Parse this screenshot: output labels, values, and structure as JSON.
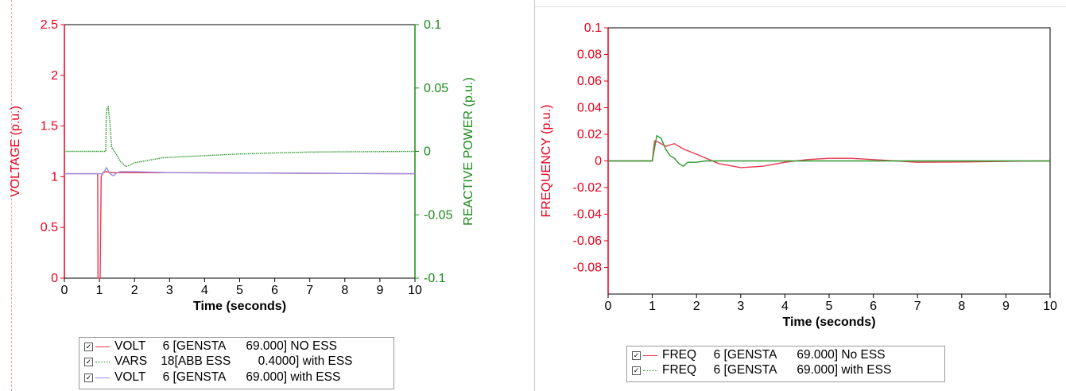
{
  "chart_data": [
    {
      "type": "line",
      "xlabel": "Time (seconds)",
      "ylabel": "VOLTAGE (p.u.)",
      "y2label": "REACTIVE POWER (p.u.)",
      "xlim": [
        0,
        10
      ],
      "ylim": [
        0,
        2.5
      ],
      "y2lim": [
        -0.1,
        0.1
      ],
      "xticks": [
        "0",
        "1",
        "2",
        "3",
        "4",
        "5",
        "6",
        "7",
        "8",
        "9",
        "10"
      ],
      "yticks": [
        "0",
        "0.5",
        "1",
        "1.5",
        "2",
        "2.5"
      ],
      "y2ticks": [
        "-0.1",
        "-0.05",
        "0",
        "0.05",
        "0.1"
      ],
      "colors": {
        "axis_left": "#e8001c",
        "axis_right": "#1a8a1a"
      },
      "series": [
        {
          "label": "VOLT     6 [GENSTA      69.000] NO ESS",
          "color": "#e8384f",
          "style": "solid",
          "axis": "left",
          "x": [
            0,
            0.9,
            0.95,
            0.96,
            1.0,
            1.02,
            1.05,
            1.1,
            1.2,
            1.3,
            1.5,
            2.0,
            3.0,
            10
          ],
          "y": [
            1.03,
            1.03,
            1.03,
            0.0,
            0.0,
            0.0,
            1.0,
            1.04,
            1.05,
            1.04,
            1.04,
            1.04,
            1.04,
            1.03
          ]
        },
        {
          "label": "VARS    18[ABB ESS        0.4000] with ESS",
          "color": "#2e9a2e",
          "style": "dotted",
          "axis": "right",
          "x": [
            0,
            1.18,
            1.2,
            1.25,
            1.3,
            1.35,
            1.4,
            1.5,
            1.6,
            1.75,
            1.85,
            2.0,
            2.4,
            2.8,
            3.5,
            5,
            7,
            10
          ],
          "y": [
            0.0,
            0.0,
            0.033,
            0.035,
            0.022,
            0.003,
            0.001,
            -0.003,
            -0.008,
            -0.012,
            -0.011,
            -0.009,
            -0.007,
            -0.005,
            -0.004,
            -0.002,
            -0.0005,
            0.0
          ]
        },
        {
          "label": "VOLT     6 [GENSTA      69.000] with ESS",
          "color": "#9b8fe0",
          "style": "solid",
          "axis": "left",
          "x": [
            0,
            1.0,
            1.1,
            1.2,
            1.3,
            1.4,
            1.5,
            1.6,
            2.0,
            3.0,
            10
          ],
          "y": [
            1.03,
            1.03,
            1.03,
            1.09,
            1.03,
            1.01,
            1.04,
            1.05,
            1.05,
            1.04,
            1.03
          ]
        }
      ]
    },
    {
      "type": "line",
      "xlabel": "Time (seconds)",
      "ylabel": "FREQUENCY (p.u.)",
      "xlim": [
        0,
        10
      ],
      "ylim": [
        -0.1,
        0.1
      ],
      "xticks": [
        "0",
        "1",
        "2",
        "3",
        "4",
        "5",
        "6",
        "7",
        "8",
        "9",
        "10"
      ],
      "yticks": [
        "0.1",
        "0.08",
        "0.06",
        "0.04",
        "0.02",
        "0",
        "-0.02",
        "-0.04",
        "-0.06",
        "-0.08"
      ],
      "colors": {
        "axis_left": "#e8001c"
      },
      "series": [
        {
          "label": "FREQ     6 [GENSTA      69.000] No ESS",
          "color": "#e8384f",
          "style": "solid",
          "axis": "left",
          "x": [
            0,
            1.0,
            1.05,
            1.15,
            1.3,
            1.5,
            1.7,
            2.0,
            2.5,
            3.0,
            3.5,
            4.0,
            4.5,
            5.0,
            5.5,
            6.0,
            6.5,
            7.0,
            8.0,
            9.0,
            10
          ],
          "y": [
            0,
            0,
            0.015,
            0.014,
            0.011,
            0.013,
            0.009,
            0.005,
            -0.002,
            -0.005,
            -0.004,
            -0.001,
            0.001,
            0.002,
            0.002,
            0.001,
            0,
            -0.001,
            -0.0008,
            -0.0003,
            0
          ]
        },
        {
          "label": "FREQ     6 [GENSTA      69.000] with ESS",
          "color": "#2e9a2e",
          "style": "solid",
          "axis": "left",
          "x": [
            0,
            1.0,
            1.1,
            1.2,
            1.3,
            1.4,
            1.5,
            1.6,
            1.7,
            1.8,
            2.0,
            2.2,
            10
          ],
          "y": [
            0,
            0,
            0.019,
            0.017,
            0.009,
            0.004,
            0.002,
            -0.002,
            -0.004,
            -0.001,
            -0.001,
            0,
            0
          ]
        }
      ]
    }
  ]
}
